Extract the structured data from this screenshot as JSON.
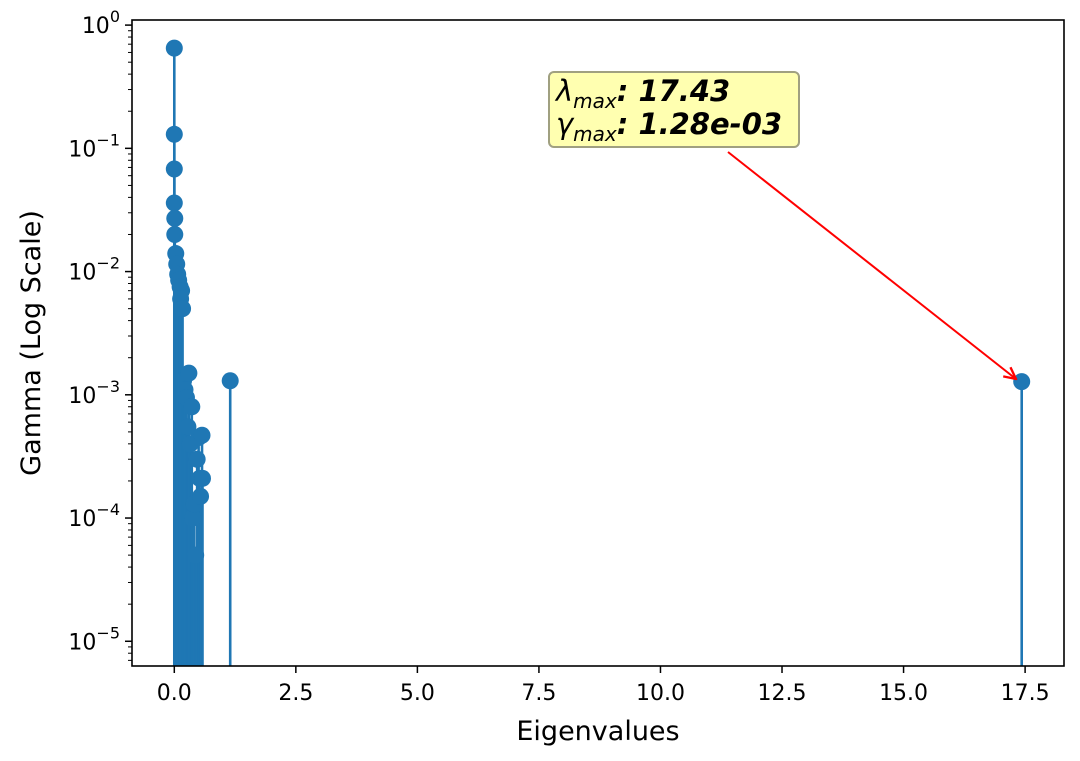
{
  "chart_data": {
    "type": "stem",
    "xlabel": "Eigenvalues",
    "ylabel": "Gamma (Log Scale)",
    "xlim": [
      -0.87,
      18.3
    ],
    "ylim": [
      6.3e-06,
      1.1
    ],
    "y_scale": "log",
    "x_ticks": [
      0,
      2.5,
      5,
      7.5,
      10,
      12.5,
      15,
      17.5
    ],
    "x_tick_labels": [
      "0.0",
      "2.5",
      "5.0",
      "7.5",
      "10.0",
      "12.5",
      "15.0",
      "17.5"
    ],
    "y_ticks": [
      {
        "value": 1,
        "base": "10",
        "exp": "0"
      },
      {
        "value": 0.1,
        "base": "10",
        "exp": "−1"
      },
      {
        "value": 0.01,
        "base": "10",
        "exp": "−2"
      },
      {
        "value": 0.001,
        "base": "10",
        "exp": "−3"
      },
      {
        "value": 0.0001,
        "base": "10",
        "exp": "−4"
      },
      {
        "value": 1e-05,
        "base": "10",
        "exp": "−5"
      }
    ],
    "grid": false,
    "colors": {
      "series": "#1f77b4",
      "arrow": "#ff0000",
      "annotation_bg": "#ffffb0",
      "annotation_border": "#a0a080"
    },
    "points": [
      [
        0.0,
        0.65
      ],
      [
        0.0,
        0.13
      ],
      [
        0.0,
        0.068
      ],
      [
        0.0,
        0.036
      ],
      [
        0.01,
        0.027
      ],
      [
        0.01,
        0.02
      ],
      [
        0.03,
        0.014
      ],
      [
        0.05,
        0.0115
      ],
      [
        0.07,
        0.0095
      ],
      [
        0.09,
        0.0085
      ],
      [
        0.12,
        0.0075
      ],
      [
        0.15,
        0.007
      ],
      [
        0.13,
        0.006
      ],
      [
        0.17,
        0.005
      ],
      [
        0.19,
        0.0013
      ],
      [
        0.22,
        0.0011
      ],
      [
        0.25,
        0.00095
      ],
      [
        0.28,
        0.00055
      ],
      [
        0.3,
        0.0015
      ],
      [
        0.33,
        0.0004
      ],
      [
        0.36,
        0.0008
      ],
      [
        0.38,
        0.0001
      ],
      [
        0.41,
        0.00013
      ],
      [
        0.44,
        5e-05
      ],
      [
        0.47,
        0.0003
      ],
      [
        0.5,
        0.00045
      ],
      [
        0.52,
        0.00021
      ],
      [
        0.54,
        0.00015
      ],
      [
        0.57,
        0.00047
      ],
      [
        0.58,
        0.00021
      ],
      [
        1.15,
        0.0013
      ],
      [
        17.43,
        0.00128
      ]
    ],
    "annotation": {
      "line1_symbol": "λ",
      "line1_sub": "max",
      "line1_value": ": 17.43",
      "line2_symbol": "γ",
      "line2_sub": "max",
      "line2_value": ": 1.28e-03",
      "target": [
        17.43,
        0.00128
      ]
    }
  }
}
